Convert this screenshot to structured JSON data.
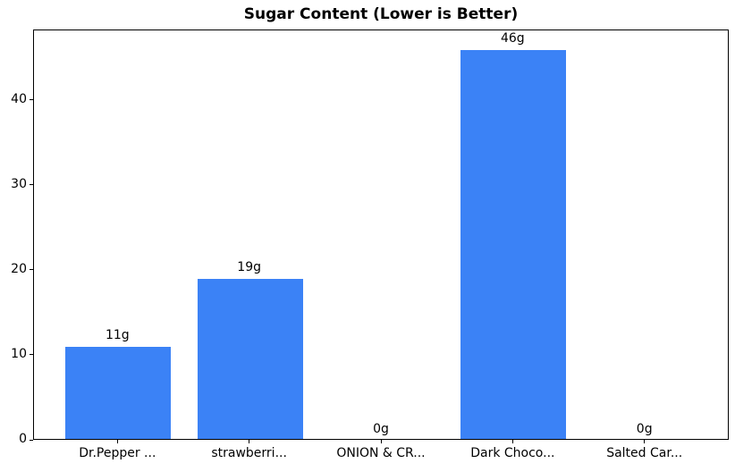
{
  "chart_data": {
    "type": "bar",
    "title": "Sugar Content (Lower is Better)",
    "categories": [
      "Dr.Pepper ...",
      "strawberri...",
      "ONION & CR...",
      "Dark Choco...",
      "Salted Car..."
    ],
    "values": [
      11,
      19,
      0,
      46,
      0
    ],
    "bar_labels": [
      "11g",
      "19g",
      "0g",
      "46g",
      "0g"
    ],
    "xlabel": "",
    "ylabel": "",
    "yticks": [
      0,
      10,
      20,
      30,
      40
    ],
    "ylim": [
      0,
      48.3
    ],
    "bar_color": "#3b82f6",
    "background_color": "#ffffff",
    "spine_color": "#000000",
    "text_color": "#000000",
    "grid": false,
    "legend": "none"
  }
}
